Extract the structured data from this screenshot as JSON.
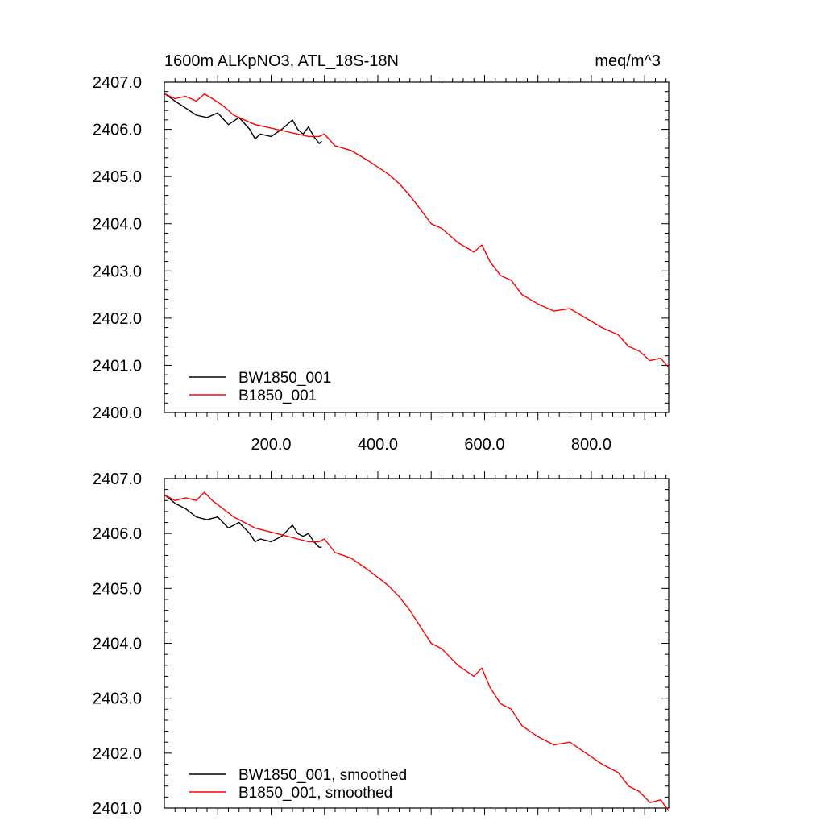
{
  "header": {
    "title": "1600m ALKpNO3, ATL_18S-18N",
    "units": "meq/m^3"
  },
  "colors": {
    "bw": "#000000",
    "b": "#ff0000",
    "axis": "#000000"
  },
  "chart_data": [
    {
      "type": "line",
      "title": "1600m ALKpNO3, ATL_18S-18N",
      "units": "meq/m^3",
      "xlim": [
        0,
        945
      ],
      "ylim": [
        2400.0,
        2407.0
      ],
      "x_ticks": [
        200,
        400,
        600,
        800
      ],
      "x_tick_labels": [
        "200.0",
        "400.0",
        "600.0",
        "800.0"
      ],
      "y_ticks": [
        2400,
        2401,
        2402,
        2403,
        2404,
        2405,
        2406,
        2407
      ],
      "y_tick_labels": [
        "2400.0",
        "2401.0",
        "2402.0",
        "2403.0",
        "2404.0",
        "2405.0",
        "2406.0",
        "2407.0"
      ],
      "legend_position": "bottom-left",
      "grid": false,
      "series": [
        {
          "name": "BW1850_001",
          "color": "#000000",
          "x": [
            1,
            20,
            40,
            60,
            80,
            100,
            120,
            140,
            160,
            170,
            180,
            200,
            220,
            240,
            250,
            260,
            270,
            280,
            290,
            295
          ],
          "y": [
            2406.75,
            2406.6,
            2406.45,
            2406.3,
            2406.25,
            2406.35,
            2406.1,
            2406.25,
            2406.0,
            2405.8,
            2405.9,
            2405.85,
            2406.0,
            2406.2,
            2406.0,
            2405.9,
            2406.05,
            2405.85,
            2405.7,
            2405.75
          ]
        },
        {
          "name": "B1850_001",
          "color": "#ff0000",
          "x": [
            1,
            20,
            40,
            60,
            75,
            90,
            110,
            130,
            150,
            170,
            190,
            210,
            230,
            250,
            270,
            290,
            300,
            320,
            350,
            380,
            400,
            420,
            440,
            460,
            480,
            500,
            520,
            550,
            580,
            595,
            610,
            630,
            650,
            670,
            700,
            730,
            760,
            790,
            820,
            850,
            870,
            890,
            910,
            930,
            945
          ],
          "y": [
            2406.75,
            2406.65,
            2406.7,
            2406.6,
            2406.75,
            2406.65,
            2406.5,
            2406.3,
            2406.2,
            2406.1,
            2406.05,
            2406.0,
            2405.95,
            2405.9,
            2405.85,
            2405.85,
            2405.9,
            2405.65,
            2405.55,
            2405.35,
            2405.2,
            2405.05,
            2404.85,
            2404.6,
            2404.3,
            2404.0,
            2403.9,
            2403.6,
            2403.4,
            2403.55,
            2403.2,
            2402.9,
            2402.8,
            2402.5,
            2402.3,
            2402.15,
            2402.2,
            2402.0,
            2401.8,
            2401.65,
            2401.4,
            2401.3,
            2401.1,
            2401.15,
            2400.95
          ]
        }
      ]
    },
    {
      "type": "line",
      "xlim": [
        0,
        945
      ],
      "ylim": [
        2401.0,
        2407.0
      ],
      "y_ticks": [
        2401,
        2402,
        2403,
        2404,
        2405,
        2406,
        2407
      ],
      "y_tick_labels": [
        "2401.0",
        "2402.0",
        "2403.0",
        "2404.0",
        "2405.0",
        "2406.0",
        "2407.0"
      ],
      "legend_position": "bottom-left",
      "grid": false,
      "series": [
        {
          "name": "BW1850_001, smoothed",
          "color": "#000000",
          "x": [
            1,
            20,
            40,
            60,
            80,
            100,
            120,
            140,
            160,
            170,
            180,
            200,
            220,
            240,
            250,
            260,
            270,
            280,
            290,
            295
          ],
          "y": [
            2406.7,
            2406.55,
            2406.45,
            2406.3,
            2406.25,
            2406.3,
            2406.1,
            2406.2,
            2406.0,
            2405.85,
            2405.9,
            2405.85,
            2405.95,
            2406.15,
            2406.0,
            2405.95,
            2406.0,
            2405.85,
            2405.75,
            2405.75
          ]
        },
        {
          "name": "B1850_001, smoothed",
          "color": "#ff0000",
          "x": [
            1,
            20,
            40,
            60,
            75,
            90,
            110,
            130,
            150,
            170,
            190,
            210,
            230,
            250,
            270,
            290,
            300,
            320,
            350,
            380,
            400,
            420,
            440,
            460,
            480,
            500,
            520,
            550,
            580,
            595,
            610,
            630,
            650,
            670,
            700,
            730,
            760,
            790,
            820,
            850,
            870,
            890,
            910,
            930,
            945
          ],
          "y": [
            2406.7,
            2406.6,
            2406.65,
            2406.6,
            2406.75,
            2406.6,
            2406.45,
            2406.3,
            2406.2,
            2406.1,
            2406.05,
            2406.0,
            2405.95,
            2405.9,
            2405.85,
            2405.85,
            2405.9,
            2405.65,
            2405.55,
            2405.35,
            2405.2,
            2405.05,
            2404.85,
            2404.6,
            2404.3,
            2404.0,
            2403.9,
            2403.6,
            2403.4,
            2403.55,
            2403.2,
            2402.9,
            2402.8,
            2402.5,
            2402.3,
            2402.15,
            2402.2,
            2402.0,
            2401.8,
            2401.65,
            2401.4,
            2401.3,
            2401.1,
            2401.15,
            2400.95
          ]
        }
      ]
    }
  ]
}
